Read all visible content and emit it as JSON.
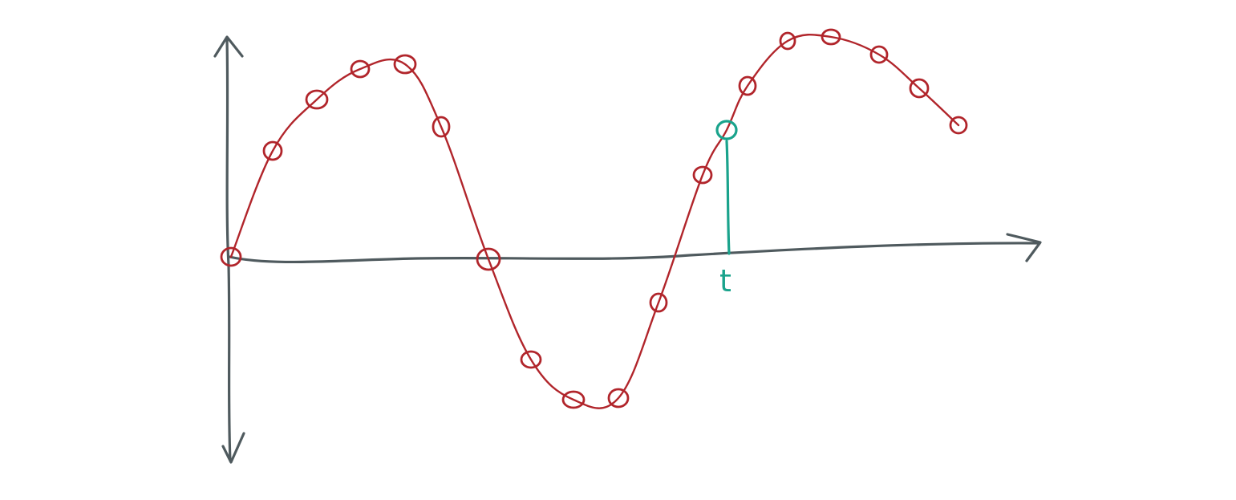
{
  "diagram": {
    "description_free": true,
    "time_marker_label": "t",
    "colors": {
      "axis": "#4f5a5e",
      "curve": "#b1252b",
      "marker": "#1aa38c"
    },
    "icons": {
      "x_arrow": "arrow-right-icon",
      "y_arrow_up": "arrow-up-icon",
      "y_arrow_down": "arrow-down-icon"
    }
  }
}
